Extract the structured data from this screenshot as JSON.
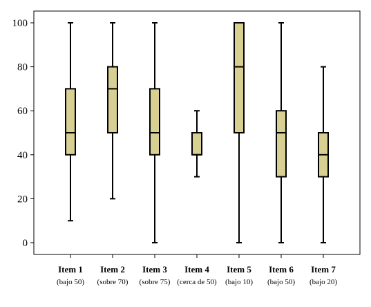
{
  "chart_data": {
    "type": "boxplot",
    "title": "",
    "xlabel": "",
    "ylabel": "",
    "ylim": [
      0,
      100
    ],
    "yticks": [
      0,
      20,
      40,
      60,
      80,
      100
    ],
    "grid": false,
    "colors": {
      "box_fill": "#d8cf93",
      "stroke": "#000000"
    },
    "categories": [
      {
        "label": "Item 1",
        "sublabel": "(bajo 50)"
      },
      {
        "label": "Item 2",
        "sublabel": "(sobre 70)"
      },
      {
        "label": "Item 3",
        "sublabel": "(sobre 75)"
      },
      {
        "label": "Item 4",
        "sublabel": "(cerca de 50)"
      },
      {
        "label": "Item 5",
        "sublabel": "(bajo 10)"
      },
      {
        "label": "Item 6",
        "sublabel": "(bajo 50)"
      },
      {
        "label": "Item 7",
        "sublabel": "(bajo 20)"
      }
    ],
    "boxes": [
      {
        "min": 10,
        "q1": 40,
        "median": 50,
        "q3": 70,
        "max": 100
      },
      {
        "min": 20,
        "q1": 50,
        "median": 70,
        "q3": 80,
        "max": 100
      },
      {
        "min": 0,
        "q1": 40,
        "median": 50,
        "q3": 70,
        "max": 100
      },
      {
        "min": 30,
        "q1": 40,
        "median": 40,
        "q3": 50,
        "max": 60
      },
      {
        "min": 0,
        "q1": 50,
        "median": 80,
        "q3": 100,
        "max": 100
      },
      {
        "min": 0,
        "q1": 30,
        "median": 50,
        "q3": 60,
        "max": 100
      },
      {
        "min": 0,
        "q1": 30,
        "median": 40,
        "q3": 50,
        "max": 80
      }
    ]
  }
}
